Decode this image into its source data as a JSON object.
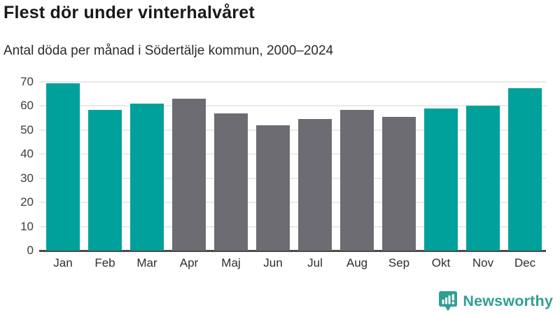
{
  "header": {
    "title": "Flest dör under vinterhalvåret",
    "subtitle": "Antal döda per månad i Södertälje kommun, 2000–2024"
  },
  "chart_data": {
    "type": "bar",
    "title": "Flest dör under vinterhalvåret",
    "subtitle": "Antal döda per månad i Södertälje kommun, 2000–2024",
    "categories": [
      "Jan",
      "Feb",
      "Mar",
      "Apr",
      "Maj",
      "Jun",
      "Jul",
      "Aug",
      "Sep",
      "Okt",
      "Nov",
      "Dec"
    ],
    "values": [
      69.5,
      58.5,
      61,
      63,
      57,
      52,
      54.5,
      58.5,
      55.5,
      59,
      60,
      67.5
    ],
    "highlighted": [
      true,
      true,
      true,
      false,
      false,
      false,
      false,
      false,
      false,
      true,
      true,
      true
    ],
    "xlabel": "",
    "ylabel": "",
    "ylim": [
      0,
      72
    ],
    "yticks": [
      0,
      10,
      20,
      30,
      40,
      50,
      60,
      70
    ],
    "grid": true,
    "legend": "none",
    "colors": {
      "highlight": "#00a19a",
      "base": "#6c6c72",
      "gridline": "#e9e9e9",
      "axis_line": "#4b4b4b"
    }
  },
  "footer": {
    "brand": "Newsworthy",
    "brand_color": "#2f9f94",
    "icon": "bar-chart-speech-bubble-icon"
  }
}
